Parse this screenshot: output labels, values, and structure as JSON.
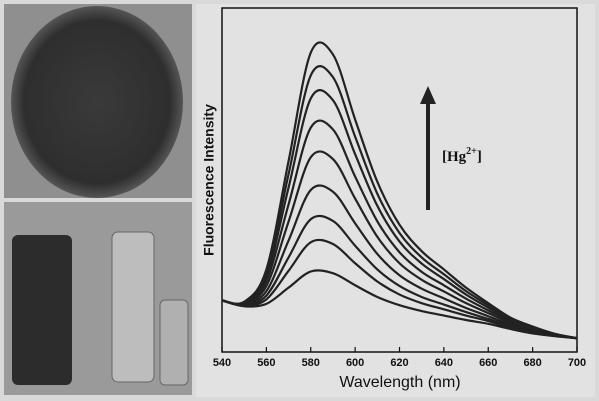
{
  "chart_data": {
    "type": "line",
    "x_label": "Wavelength (nm)",
    "y_label": "Fluorescence Intensity",
    "annotation": [
      "[Hg",
      "2+",
      "]"
    ],
    "x": [
      540,
      550,
      560,
      570,
      580,
      590,
      600,
      610,
      620,
      630,
      640,
      650,
      660,
      670,
      680,
      690,
      700
    ],
    "xlim": [
      540,
      700
    ],
    "xticks": [
      540,
      560,
      580,
      600,
      620,
      640,
      660,
      680,
      700
    ],
    "ylim": [
      0,
      100
    ],
    "series": [
      {
        "color": "#222222",
        "values": [
          15,
          14.6,
          24,
          55.5,
          87,
          86.5,
          67.6,
          49.5,
          37,
          29.3,
          24,
          18.7,
          14.2,
          10,
          7.4,
          5.3,
          4
        ]
      },
      {
        "color": "#222222",
        "values": [
          15,
          14.5,
          23,
          51.7,
          80.4,
          79.9,
          62.6,
          46,
          34.6,
          27.5,
          22.6,
          17.7,
          13.6,
          9.7,
          7.2,
          5.2,
          4
        ]
      },
      {
        "color": "#222222",
        "values": [
          15,
          14.3,
          21.9,
          47.8,
          73.7,
          73.2,
          57.5,
          42.5,
          32.1,
          25.7,
          21.2,
          16.7,
          12.9,
          9.3,
          7,
          5.2,
          4
        ]
      },
      {
        "color": "#222222",
        "values": [
          15,
          14.1,
          20.6,
          42.9,
          65.2,
          64.7,
          51,
          38,
          29,
          23.3,
          19.4,
          15.5,
          12.1,
          8.9,
          6.7,
          5.1,
          4
        ]
      },
      {
        "color": "#222222",
        "values": [
          15,
          14,
          19.2,
          37.9,
          56.6,
          56.1,
          44.6,
          33.5,
          25.8,
          21,
          17.6,
          14.2,
          11.3,
          8.4,
          6.4,
          5,
          4
        ]
      },
      {
        "color": "#222222",
        "values": [
          15,
          13.8,
          17.7,
          32.4,
          47.1,
          46.6,
          37.4,
          28.5,
          22.3,
          18.4,
          15.6,
          12.8,
          10.4,
          7.9,
          6.1,
          4.9,
          4
        ]
      },
      {
        "color": "#222222",
        "values": [
          15,
          13.6,
          16.4,
          27.5,
          38.6,
          38.1,
          30.9,
          24,
          19.2,
          16,
          13.8,
          11.6,
          9.6,
          7.5,
          5.9,
          4.8,
          4
        ]
      },
      {
        "color": "#222222",
        "values": [
          15,
          13.4,
          15.3,
          23.6,
          31.9,
          31.4,
          25.8,
          20.5,
          16.7,
          14.2,
          12.4,
          10.6,
          9,
          7.1,
          5.7,
          4.7,
          4
        ]
      },
      {
        "color": "#222222",
        "values": [
          15,
          13.3,
          14,
          18.7,
          23.4,
          22.9,
          19.4,
          16,
          13.6,
          11.9,
          10.6,
          9.3,
          8.2,
          6.7,
          5.4,
          4.6,
          4
        ]
      }
    ]
  }
}
